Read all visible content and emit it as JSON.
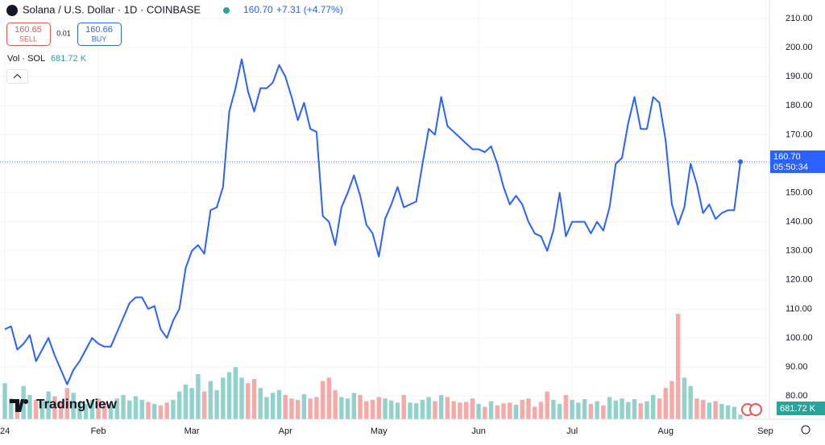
{
  "header": {
    "title": "Solana / U.S. Dollar · 1D · COINBASE",
    "price": "160.70",
    "change": "+7.31 (+4.77%)",
    "sell_price": "160.65",
    "sell": "SELL",
    "spread": "0.01",
    "buy_price": "160.66",
    "buy": "BUY",
    "volume_label": "Vol · SOL",
    "volume_value": "681.72 K",
    "watermark": "TradingView"
  },
  "chart_data": {
    "type": "line",
    "categories": [
      "24",
      null,
      null,
      null,
      null,
      null,
      null,
      null,
      null,
      null,
      null,
      null,
      null,
      null,
      null,
      "Feb",
      null,
      null,
      null,
      null,
      null,
      null,
      null,
      null,
      null,
      null,
      null,
      null,
      null,
      null,
      "Mar",
      null,
      null,
      null,
      null,
      null,
      null,
      null,
      null,
      null,
      null,
      null,
      null,
      null,
      null,
      "Apr",
      null,
      null,
      null,
      null,
      null,
      null,
      null,
      null,
      null,
      null,
      null,
      null,
      null,
      null,
      "May",
      null,
      null,
      null,
      null,
      null,
      null,
      null,
      null,
      null,
      null,
      null,
      null,
      null,
      null,
      null,
      "Jun",
      null,
      null,
      null,
      null,
      null,
      null,
      null,
      null,
      null,
      null,
      null,
      null,
      null,
      null,
      "Jul",
      null,
      null,
      null,
      null,
      null,
      null,
      null,
      null,
      null,
      null,
      null,
      null,
      null,
      null,
      "Aug",
      null,
      null,
      null,
      null,
      null,
      null,
      null,
      null,
      null,
      null,
      null,
      null,
      null,
      null,
      null,
      "Sep"
    ],
    "series": [
      {
        "color": "#2962ff",
        "values": [
          103,
          104,
          96,
          98,
          101,
          92,
          96,
          100,
          94,
          89,
          84,
          89,
          92,
          96,
          100,
          98,
          97,
          97,
          102,
          107,
          112,
          114,
          114,
          110,
          111,
          103,
          100,
          106,
          110,
          124,
          130,
          132,
          129,
          144,
          145,
          152,
          178,
          186,
          196,
          185,
          178,
          186,
          186,
          188,
          194,
          190,
          183,
          175,
          181,
          172,
          171,
          142,
          140,
          132,
          145,
          150,
          156,
          149,
          139,
          136,
          128,
          141,
          146,
          152,
          145,
          146,
          147,
          160,
          172,
          170,
          183,
          173,
          171,
          169,
          167,
          165,
          165,
          164,
          166,
          160,
          152,
          146,
          149,
          146,
          140,
          136,
          135,
          130,
          137,
          150,
          135,
          140,
          140,
          140,
          136,
          140,
          137,
          145,
          160,
          162,
          174,
          183,
          172,
          172,
          183,
          181,
          168,
          146,
          139,
          145,
          160,
          153,
          143,
          146,
          141,
          143,
          144,
          144,
          160.7,
          null,
          null,
          null,
          null
        ]
      }
    ],
    "volume": {
      "type": "bar",
      "up_color": "#26a69a",
      "down_color": "#ef5350",
      "values": [
        5200,
        3000,
        2500,
        4800,
        3500,
        2800,
        2600,
        4000,
        3300,
        2400,
        4500,
        3800,
        2500,
        2200,
        2800,
        3000,
        2400,
        2200,
        3000,
        3500,
        2700,
        3300,
        2800,
        2500,
        2200,
        2000,
        2400,
        2800,
        4000,
        5000,
        4500,
        6500,
        4000,
        5500,
        4200,
        6000,
        6800,
        7500,
        6000,
        5200,
        5800,
        4500,
        3200,
        3800,
        4200,
        3500,
        3000,
        2800,
        3600,
        3000,
        3200,
        5500,
        6000,
        4200,
        3200,
        3000,
        3800,
        3500,
        2600,
        2800,
        3200,
        3000,
        2700,
        2400,
        3500,
        2400,
        2300,
        2800,
        3200,
        2600,
        3500,
        3200,
        2600,
        2400,
        2500,
        3000,
        2200,
        1800,
        2600,
        2000,
        2300,
        2400,
        2100,
        2800,
        3000,
        1800,
        2500,
        4000,
        2800,
        2200,
        3500,
        2800,
        2400,
        2900,
        2200,
        2600,
        2000,
        3200,
        2700,
        3000,
        2500,
        2900,
        2300,
        2600,
        3500,
        3000,
        4500,
        5500,
        15200,
        6000,
        4800,
        3000,
        2800,
        2400,
        2600,
        2200,
        2000,
        1800,
        681.72,
        null,
        null,
        null,
        null
      ]
    },
    "ylim": [
      72,
      216.4
    ],
    "yticks": [
      {
        "value": 80,
        "label": "80.00"
      },
      {
        "value": 90,
        "label": "90.00"
      },
      {
        "value": 100,
        "label": "100.00"
      },
      {
        "value": 110,
        "label": "110.00"
      },
      {
        "value": 120,
        "label": "120.00"
      },
      {
        "value": 130,
        "label": "130.00"
      },
      {
        "value": 140,
        "label": "140.00"
      },
      {
        "value": 150,
        "label": "150.00"
      },
      {
        "value": 160,
        "label": "160.00"
      },
      {
        "value": 170,
        "label": "170.00"
      },
      {
        "value": 180,
        "label": "180.00"
      },
      {
        "value": 190,
        "label": "190.00"
      },
      {
        "value": 200,
        "label": "200.00"
      },
      {
        "value": 210,
        "label": "210.00"
      }
    ],
    "last_price_label": "160.70",
    "countdown": "05:50:34",
    "grid": true
  }
}
